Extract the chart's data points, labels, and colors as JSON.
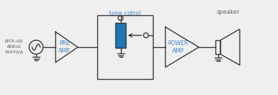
{
  "bg_color": "#efefef",
  "text_color": "#666666",
  "blue_text": "#4488cc",
  "source_label": "pick-up\natauu\nlainnya",
  "pre_amp_label": "PRE\nAMP",
  "tone_label": "tone cotrol",
  "power_amp_label": "POWER\nAMP",
  "speaker_label": "speaker",
  "fig_width": 4.0,
  "fig_height": 1.37,
  "dpi": 100
}
